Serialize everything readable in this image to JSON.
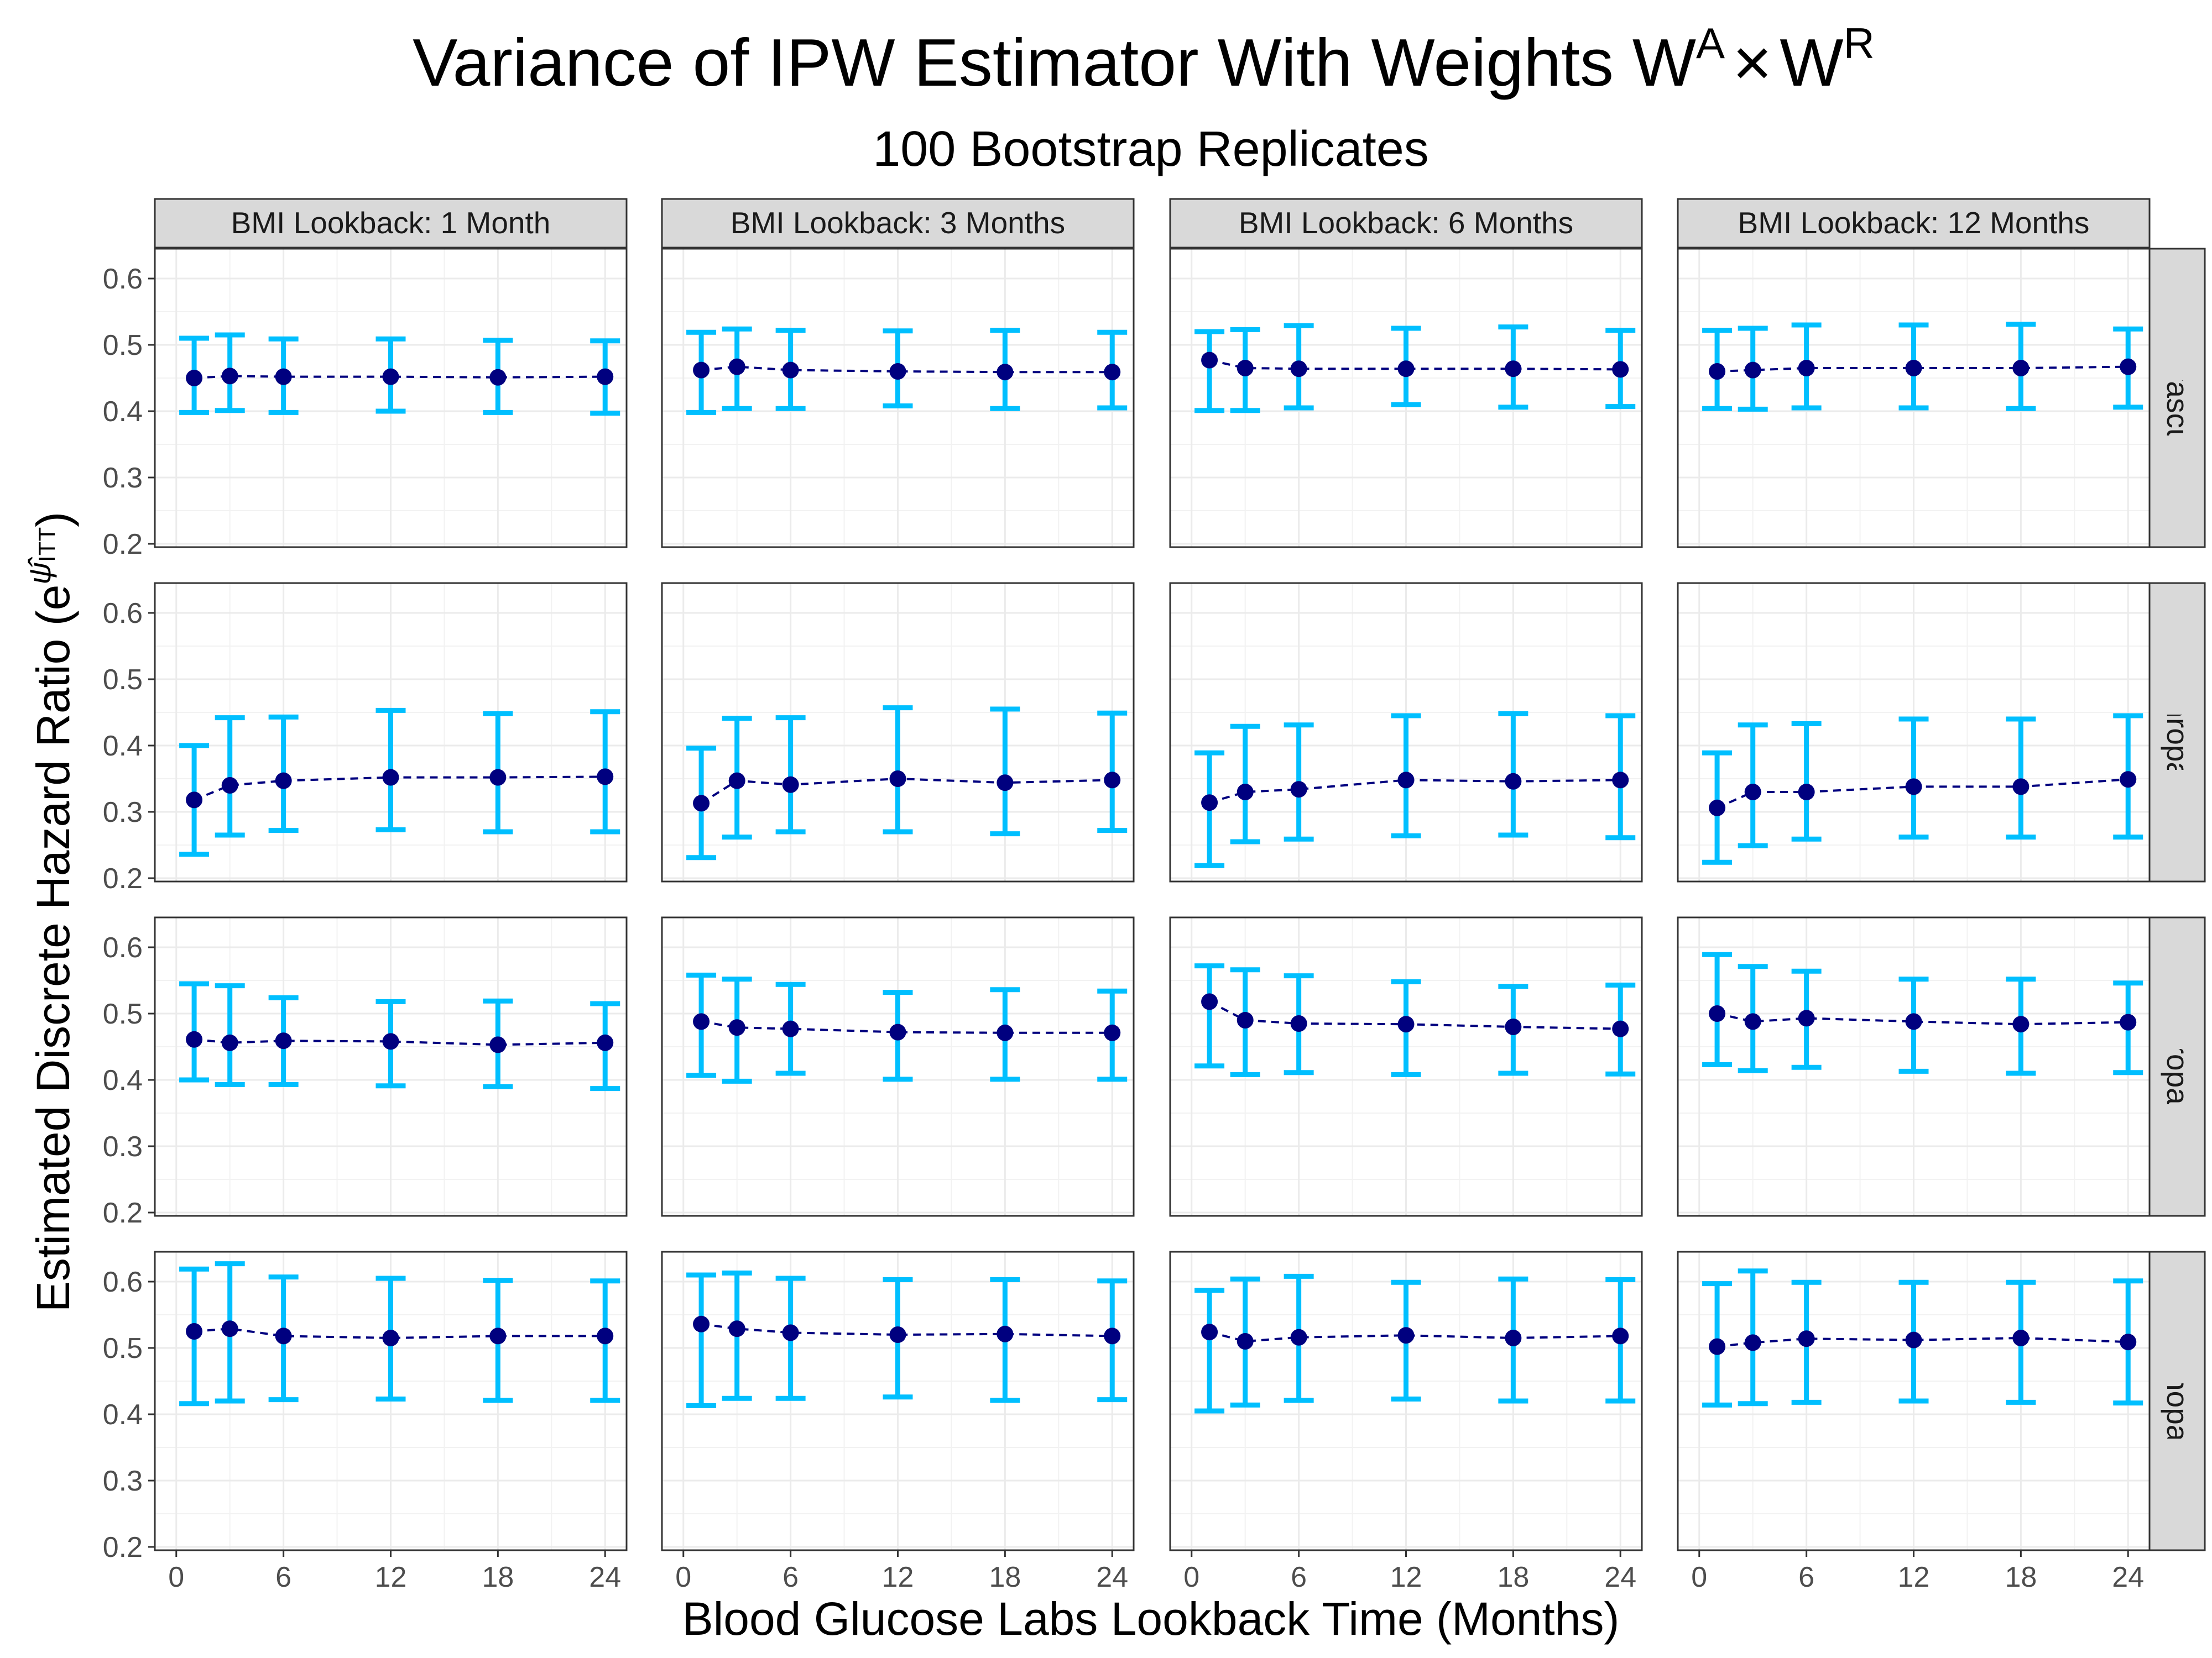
{
  "title": {
    "text": "Variance of IPW Estimator With Weights W",
    "sup_a": "A",
    "times": "×",
    "w2": "W",
    "sup_r": "R"
  },
  "subtitle": "100 Bootstrap Replicates",
  "chart_data": {
    "type": "scatter",
    "title": "Variance of IPW Estimator With Weights W^A × W^R",
    "subtitle": "100 Bootstrap Replicates",
    "xlabel": "Blood Glucose Labs Lookback Time (Months)",
    "ylabel": "Estimated Discrete Hazard Ratio (e^ψ̂ITT)",
    "ylabel_parts": {
      "main": "Estimated Discrete Hazard Ratio (e",
      "sup_psi": "ψ̂",
      "sub": "ITT",
      "close": ")"
    },
    "xlim": [
      -1.2,
      25.2
    ],
    "ylim": [
      0.195,
      0.645
    ],
    "xticks": [
      0,
      6,
      12,
      18,
      24
    ],
    "yticks": [
      0.2,
      0.3,
      0.4,
      0.5,
      0.6
    ],
    "grid": true,
    "x": [
      1,
      3,
      6,
      12,
      18,
      24
    ],
    "column_facets": [
      "BMI Lookback: 1 Month",
      "BMI Lookback: 3 Months",
      "BMI Lookback: 6 Months",
      "BMI Lookback: 12 Months"
    ],
    "row_facets": [
      "Any Microvascular Event",
      "Nephropathy",
      "Neuropathy",
      "Retinopathy"
    ],
    "colors": {
      "point": "#00007f",
      "line": "#00007f",
      "errorbar": "#00bfff",
      "strip_fill": "#d9d9d9",
      "grid": "#ebebeb"
    },
    "panels": [
      [
        {
          "y": [
            0.45,
            0.453,
            0.452,
            0.452,
            0.451,
            0.452
          ],
          "lower": [
            0.398,
            0.401,
            0.398,
            0.4,
            0.398,
            0.397
          ],
          "upper": [
            0.51,
            0.515,
            0.509,
            0.509,
            0.507,
            0.506
          ]
        },
        {
          "y": [
            0.462,
            0.467,
            0.462,
            0.46,
            0.459,
            0.459
          ],
          "lower": [
            0.398,
            0.404,
            0.404,
            0.408,
            0.404,
            0.405
          ],
          "upper": [
            0.519,
            0.524,
            0.522,
            0.521,
            0.522,
            0.519
          ]
        },
        {
          "y": [
            0.477,
            0.465,
            0.464,
            0.464,
            0.464,
            0.463
          ],
          "lower": [
            0.401,
            0.401,
            0.405,
            0.41,
            0.406,
            0.407
          ],
          "upper": [
            0.52,
            0.523,
            0.529,
            0.525,
            0.527,
            0.522
          ]
        },
        {
          "y": [
            0.46,
            0.462,
            0.465,
            0.465,
            0.465,
            0.467
          ],
          "lower": [
            0.404,
            0.403,
            0.405,
            0.405,
            0.404,
            0.406
          ],
          "upper": [
            0.522,
            0.525,
            0.53,
            0.53,
            0.531,
            0.524
          ]
        }
      ],
      [
        {
          "y": [
            0.318,
            0.34,
            0.347,
            0.352,
            0.352,
            0.353
          ],
          "lower": [
            0.236,
            0.265,
            0.272,
            0.273,
            0.27,
            0.27
          ],
          "upper": [
            0.4,
            0.442,
            0.443,
            0.453,
            0.448,
            0.451
          ]
        },
        {
          "y": [
            0.313,
            0.347,
            0.341,
            0.35,
            0.344,
            0.348
          ],
          "lower": [
            0.231,
            0.262,
            0.27,
            0.27,
            0.267,
            0.272
          ],
          "upper": [
            0.396,
            0.441,
            0.442,
            0.457,
            0.455,
            0.449
          ]
        },
        {
          "y": [
            0.314,
            0.33,
            0.334,
            0.348,
            0.346,
            0.348
          ],
          "lower": [
            0.219,
            0.255,
            0.259,
            0.264,
            0.265,
            0.261
          ],
          "upper": [
            0.389,
            0.429,
            0.431,
            0.445,
            0.448,
            0.445
          ]
        },
        {
          "y": [
            0.306,
            0.33,
            0.33,
            0.338,
            0.338,
            0.349
          ],
          "lower": [
            0.224,
            0.249,
            0.259,
            0.262,
            0.262,
            0.262
          ],
          "upper": [
            0.389,
            0.431,
            0.433,
            0.44,
            0.44,
            0.445
          ]
        }
      ],
      [
        {
          "y": [
            0.461,
            0.456,
            0.459,
            0.458,
            0.453,
            0.456
          ],
          "lower": [
            0.4,
            0.393,
            0.393,
            0.391,
            0.39,
            0.387
          ],
          "upper": [
            0.545,
            0.542,
            0.524,
            0.518,
            0.519,
            0.515
          ]
        },
        {
          "y": [
            0.488,
            0.479,
            0.477,
            0.472,
            0.471,
            0.471
          ],
          "lower": [
            0.407,
            0.398,
            0.41,
            0.401,
            0.401,
            0.401
          ],
          "upper": [
            0.558,
            0.552,
            0.544,
            0.532,
            0.536,
            0.534
          ]
        },
        {
          "y": [
            0.518,
            0.49,
            0.485,
            0.484,
            0.48,
            0.477
          ],
          "lower": [
            0.421,
            0.408,
            0.411,
            0.408,
            0.41,
            0.409
          ],
          "upper": [
            0.572,
            0.566,
            0.557,
            0.548,
            0.541,
            0.543
          ]
        },
        {
          "y": [
            0.5,
            0.488,
            0.493,
            0.488,
            0.484,
            0.487
          ],
          "lower": [
            0.423,
            0.414,
            0.419,
            0.413,
            0.41,
            0.411
          ],
          "upper": [
            0.589,
            0.571,
            0.564,
            0.552,
            0.552,
            0.546
          ]
        }
      ],
      [
        {
          "y": [
            0.525,
            0.529,
            0.518,
            0.515,
            0.518,
            0.518
          ],
          "lower": [
            0.416,
            0.42,
            0.422,
            0.423,
            0.421,
            0.421
          ],
          "upper": [
            0.619,
            0.627,
            0.607,
            0.605,
            0.602,
            0.601
          ]
        },
        {
          "y": [
            0.536,
            0.529,
            0.523,
            0.52,
            0.521,
            0.518
          ],
          "lower": [
            0.413,
            0.424,
            0.424,
            0.426,
            0.421,
            0.422
          ],
          "upper": [
            0.61,
            0.613,
            0.605,
            0.603,
            0.603,
            0.601
          ]
        },
        {
          "y": [
            0.524,
            0.51,
            0.516,
            0.519,
            0.515,
            0.518
          ],
          "lower": [
            0.405,
            0.414,
            0.421,
            0.423,
            0.42,
            0.42
          ],
          "upper": [
            0.587,
            0.604,
            0.608,
            0.599,
            0.604,
            0.603
          ]
        },
        {
          "y": [
            0.502,
            0.508,
            0.514,
            0.512,
            0.515,
            0.509
          ],
          "lower": [
            0.414,
            0.416,
            0.418,
            0.42,
            0.418,
            0.417
          ],
          "upper": [
            0.597,
            0.616,
            0.599,
            0.599,
            0.599,
            0.601
          ]
        }
      ]
    ]
  }
}
